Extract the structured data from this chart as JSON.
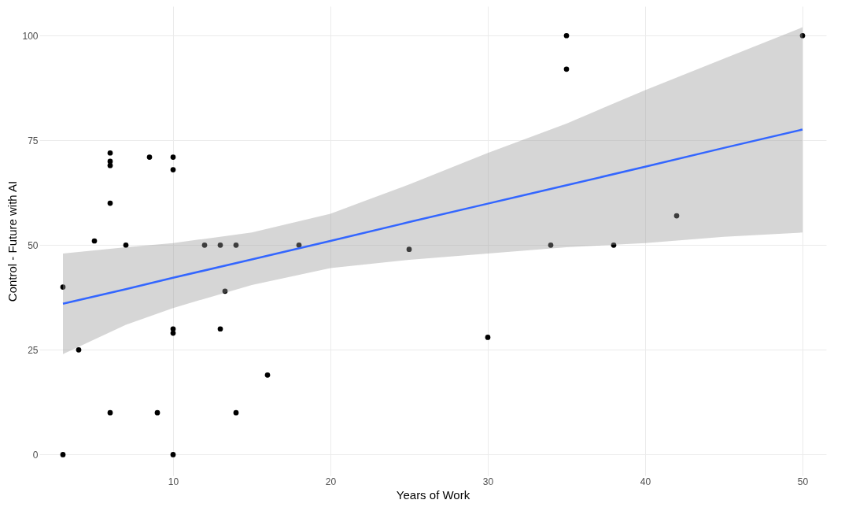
{
  "chart_data": {
    "type": "scatter",
    "xlabel": "Years of Work",
    "ylabel": "Control - Future with AI",
    "xlim": [
      1.5,
      51.5
    ],
    "ylim": [
      -5,
      107
    ],
    "xticks": [
      10,
      20,
      30,
      40,
      50
    ],
    "yticks": [
      0,
      25,
      50,
      75,
      100
    ],
    "grid": true,
    "marker": "circle",
    "series": [
      {
        "color": "#000000",
        "x": [
          3,
          3,
          4,
          5,
          6,
          6,
          6,
          6,
          6,
          7,
          8.5,
          9,
          10,
          10,
          10,
          10,
          10,
          12,
          13,
          13,
          13.3,
          14,
          14,
          16,
          18,
          25,
          30,
          34,
          35,
          35,
          38,
          42,
          50
        ],
        "values": [
          40,
          0,
          25,
          51,
          10,
          60,
          69,
          70,
          72,
          50,
          71,
          10,
          71,
          68,
          30,
          29,
          0,
          50,
          50,
          30,
          39,
          50,
          10,
          19,
          50,
          49,
          28,
          50,
          100,
          92,
          50,
          57,
          100
        ]
      },
      {
        "type": "line",
        "marker": "none",
        "color": "#3366ff",
        "x": [
          3,
          7,
          10,
          15,
          20,
          25,
          30,
          35,
          40,
          45,
          50
        ],
        "values": [
          36,
          39.5,
          42.2,
          46.6,
          51,
          55.5,
          59.9,
          64.3,
          68.7,
          73.2,
          77.6
        ],
        "lower": [
          24,
          31,
          35,
          40.5,
          44.5,
          46.5,
          48,
          49.5,
          50.5,
          52,
          53
        ],
        "upper": [
          48,
          49.5,
          50.5,
          53,
          57.5,
          64.5,
          72,
          79,
          87,
          94.5,
          102
        ]
      }
    ]
  }
}
